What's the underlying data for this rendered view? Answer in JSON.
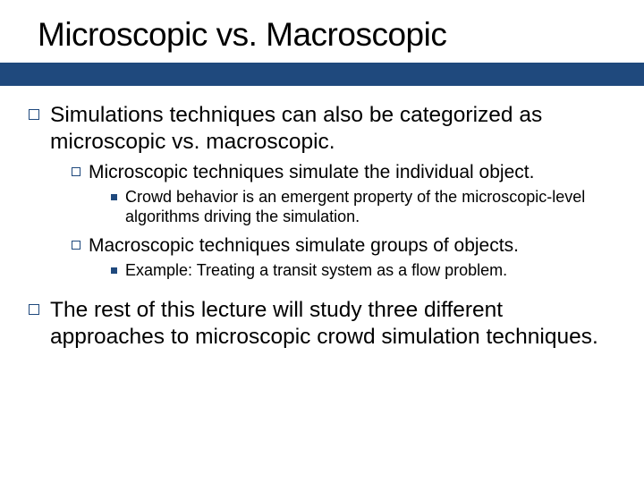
{
  "colors": {
    "accent": "#1f497d",
    "text": "#000000",
    "background": "#ffffff"
  },
  "typography": {
    "title_fontsize": 37,
    "lvl1_fontsize": 24.5,
    "lvl2_fontsize": 21,
    "lvl3_fontsize": 18,
    "font_family": "Arial"
  },
  "layout": {
    "title_bar_height": 26,
    "slide_width": 720,
    "slide_height": 540
  },
  "title": "Microscopic vs. Macroscopic",
  "bullets": {
    "b1": "Simulations techniques can also be categorized as microscopic vs. macroscopic.",
    "b1_1": "Microscopic techniques simulate the individual object.",
    "b1_1_1": "Crowd behavior is an emergent property of the microscopic-level algorithms driving the simulation.",
    "b1_2": "Macroscopic techniques simulate groups of objects.",
    "b1_2_1": "Example: Treating a transit system as a flow problem.",
    "b2": "The rest of this lecture will study three different approaches to microscopic crowd simulation techniques."
  }
}
